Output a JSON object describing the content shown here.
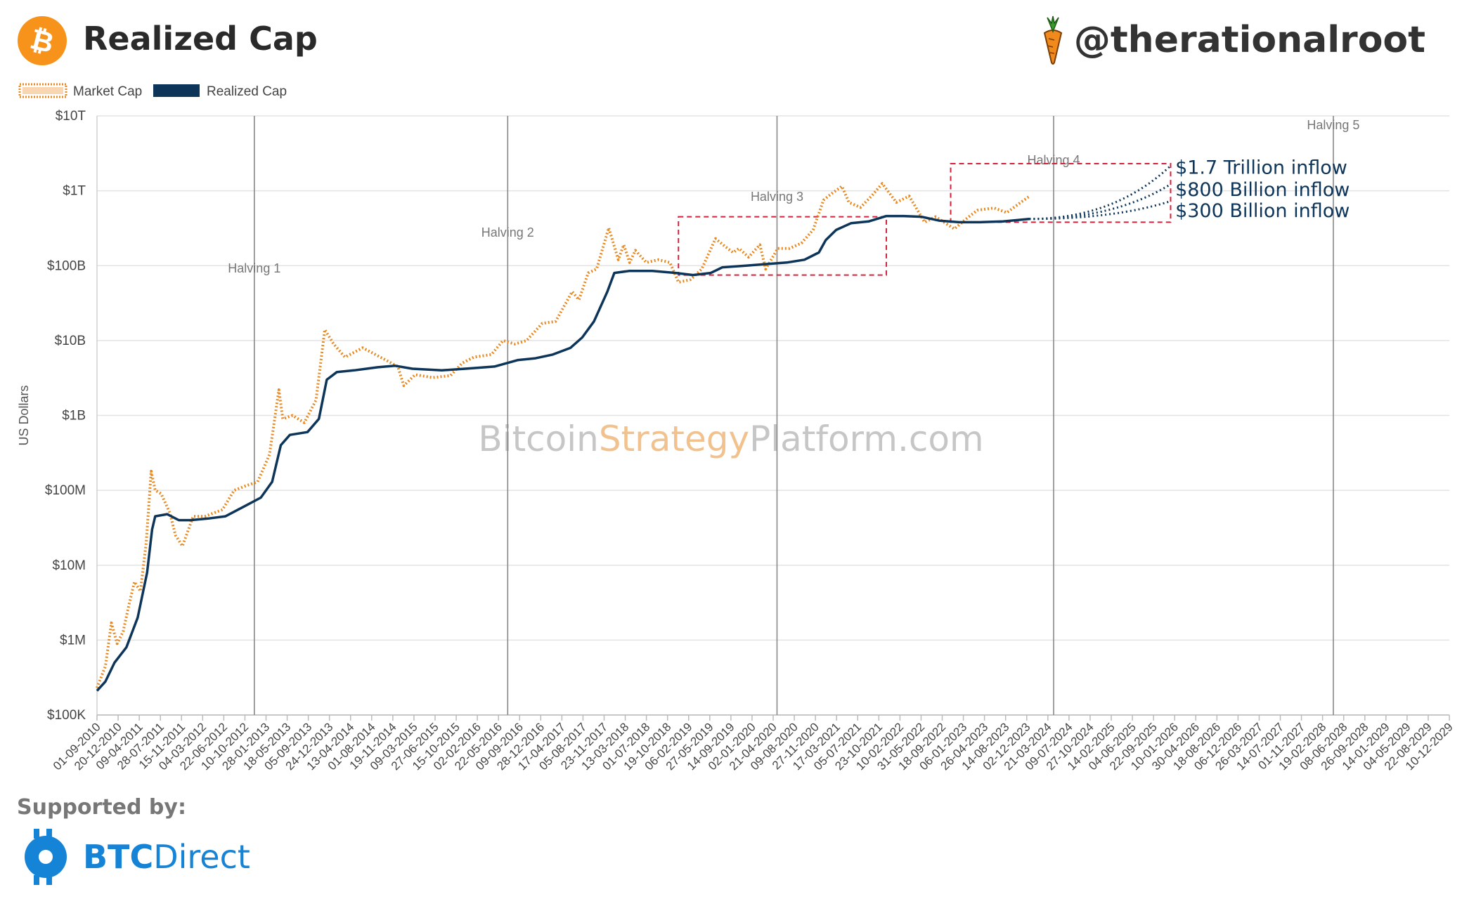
{
  "header": {
    "title": "Realized Cap",
    "author": "@therationalroot"
  },
  "footer": {
    "supported_label": "Supported by:",
    "sponsor_bold": "BTC",
    "sponsor_rest": "Direct"
  },
  "watermark": {
    "part1": "Bitcoin",
    "part2": "Strategy",
    "part3": "Platform.com"
  },
  "colors": {
    "market_cap": "#e8891f",
    "realized_cap": "#0d3559",
    "highlight_box": "#d6203a",
    "btc_orange": "#f7931a",
    "sponsor_blue": "#1583d6"
  },
  "chart_data": {
    "type": "line",
    "yscale": "log",
    "ylabel": "US Dollars",
    "ylim": [
      100000,
      10000000000000
    ],
    "y_ticks": [
      {
        "value": 100000,
        "label": "$100K"
      },
      {
        "value": 1000000,
        "label": "$1M"
      },
      {
        "value": 10000000,
        "label": "$10M"
      },
      {
        "value": 100000000,
        "label": "$100M"
      },
      {
        "value": 1000000000,
        "label": "$1B"
      },
      {
        "value": 10000000000,
        "label": "$10B"
      },
      {
        "value": 100000000000,
        "label": "$100B"
      },
      {
        "value": 1000000000000,
        "label": "$1T"
      },
      {
        "value": 10000000000000,
        "label": "$10T"
      }
    ],
    "xlim": [
      "2010-09-01",
      "2029-12-10"
    ],
    "x_ticks": [
      "01-09-2010",
      "20-12-2010",
      "09-04-2011",
      "28-07-2011",
      "15-11-2011",
      "04-03-2012",
      "22-06-2012",
      "10-10-2012",
      "28-01-2013",
      "18-05-2013",
      "05-09-2013",
      "24-12-2013",
      "13-04-2014",
      "01-08-2014",
      "19-11-2014",
      "09-03-2015",
      "27-06-2015",
      "15-10-2015",
      "02-02-2016",
      "22-05-2016",
      "09-09-2016",
      "28-12-2016",
      "17-04-2017",
      "05-08-2017",
      "23-11-2017",
      "13-03-2018",
      "01-07-2018",
      "19-10-2018",
      "06-02-2019",
      "27-05-2019",
      "14-09-2019",
      "02-01-2020",
      "21-04-2020",
      "09-08-2020",
      "27-11-2020",
      "17-03-2021",
      "05-07-2021",
      "23-10-2021",
      "10-02-2022",
      "31-05-2022",
      "18-09-2022",
      "06-01-2023",
      "26-04-2023",
      "14-08-2023",
      "02-12-2023",
      "21-03-2024",
      "09-07-2024",
      "27-10-2024",
      "14-02-2025",
      "04-06-2025",
      "22-09-2025",
      "10-01-2026",
      "30-04-2026",
      "18-08-2026",
      "06-12-2026",
      "26-03-2027",
      "14-07-2027",
      "01-11-2027",
      "19-02-2028",
      "08-06-2028",
      "26-09-2028",
      "14-01-2029",
      "04-05-2029",
      "22-08-2029",
      "10-12-2029"
    ],
    "legend": [
      {
        "name": "Market Cap",
        "style": "dotted",
        "color": "#e8891f"
      },
      {
        "name": "Realized Cap",
        "style": "solid",
        "color": "#0d3559"
      }
    ],
    "legend_position": "top-left",
    "grid": true,
    "halvings": [
      {
        "label": "Halving 1",
        "date": "2012-11-28"
      },
      {
        "label": "Halving 2",
        "date": "2016-07-09"
      },
      {
        "label": "Halving 3",
        "date": "2020-05-11"
      },
      {
        "label": "Halving 4",
        "date": "2024-04-20"
      },
      {
        "label": "Halving 5",
        "date": "2028-04-15"
      }
    ],
    "series": [
      {
        "name": "Market Cap",
        "points": [
          [
            "2010-09-01",
            230000
          ],
          [
            "2010-10-15",
            450000
          ],
          [
            "2010-11-15",
            1700000
          ],
          [
            "2010-12-15",
            900000
          ],
          [
            "2011-01-15",
            1300000
          ],
          [
            "2011-02-15",
            3000000
          ],
          [
            "2011-03-15",
            6000000
          ],
          [
            "2011-04-15",
            4500000
          ],
          [
            "2011-05-15",
            20000000
          ],
          [
            "2011-06-10",
            180000000
          ],
          [
            "2011-07-01",
            100000000
          ],
          [
            "2011-08-01",
            90000000
          ],
          [
            "2011-09-15",
            50000000
          ],
          [
            "2011-10-15",
            25000000
          ],
          [
            "2011-11-20",
            18000000
          ],
          [
            "2012-01-15",
            45000000
          ],
          [
            "2012-03-15",
            45000000
          ],
          [
            "2012-06-15",
            55000000
          ],
          [
            "2012-08-15",
            100000000
          ],
          [
            "2012-10-15",
            115000000
          ],
          [
            "2012-12-15",
            130000000
          ],
          [
            "2013-02-15",
            300000000
          ],
          [
            "2013-04-05",
            2200000000
          ],
          [
            "2013-04-25",
            900000000
          ],
          [
            "2013-06-15",
            1000000000
          ],
          [
            "2013-08-15",
            800000000
          ],
          [
            "2013-10-15",
            1600000000
          ],
          [
            "2013-11-30",
            14000000000
          ],
          [
            "2014-01-15",
            9000000000
          ],
          [
            "2014-03-15",
            6000000000
          ],
          [
            "2014-06-15",
            8000000000
          ],
          [
            "2014-09-15",
            6000000000
          ],
          [
            "2014-12-15",
            4500000000
          ],
          [
            "2015-01-15",
            2500000000
          ],
          [
            "2015-03-15",
            3500000000
          ],
          [
            "2015-06-15",
            3200000000
          ],
          [
            "2015-09-15",
            3400000000
          ],
          [
            "2015-11-15",
            5000000000
          ],
          [
            "2016-01-15",
            6000000000
          ],
          [
            "2016-04-15",
            6500000000
          ],
          [
            "2016-06-15",
            10000000000
          ],
          [
            "2016-08-15",
            9000000000
          ],
          [
            "2016-10-15",
            10000000000
          ],
          [
            "2017-01-05",
            17000000000
          ],
          [
            "2017-03-15",
            18000000000
          ],
          [
            "2017-06-10",
            45000000000
          ],
          [
            "2017-07-15",
            35000000000
          ],
          [
            "2017-09-01",
            80000000000
          ],
          [
            "2017-10-15",
            90000000000
          ],
          [
            "2017-12-17",
            320000000000
          ],
          [
            "2018-02-05",
            120000000000
          ],
          [
            "2018-03-05",
            190000000000
          ],
          [
            "2018-04-05",
            110000000000
          ],
          [
            "2018-05-05",
            160000000000
          ],
          [
            "2018-07-01",
            110000000000
          ],
          [
            "2018-09-01",
            120000000000
          ],
          [
            "2018-11-01",
            110000000000
          ],
          [
            "2018-12-15",
            60000000000
          ],
          [
            "2019-02-15",
            65000000000
          ],
          [
            "2019-04-15",
            90000000000
          ],
          [
            "2019-06-26",
            230000000000
          ],
          [
            "2019-08-15",
            180000000000
          ],
          [
            "2019-09-25",
            150000000000
          ],
          [
            "2019-10-26",
            170000000000
          ],
          [
            "2019-12-15",
            130000000000
          ],
          [
            "2020-02-12",
            190000000000
          ],
          [
            "2020-03-13",
            90000000000
          ],
          [
            "2020-05-15",
            170000000000
          ],
          [
            "2020-07-15",
            170000000000
          ],
          [
            "2020-09-15",
            200000000000
          ],
          [
            "2020-11-15",
            300000000000
          ],
          [
            "2021-01-08",
            750000000000
          ],
          [
            "2021-02-15",
            900000000000
          ],
          [
            "2021-04-14",
            1150000000000
          ],
          [
            "2021-05-20",
            700000000000
          ],
          [
            "2021-07-20",
            600000000000
          ],
          [
            "2021-09-15",
            850000000000
          ],
          [
            "2021-11-10",
            1250000000000
          ],
          [
            "2022-01-22",
            700000000000
          ],
          [
            "2022-03-30",
            850000000000
          ],
          [
            "2022-06-18",
            380000000000
          ],
          [
            "2022-08-15",
            450000000000
          ],
          [
            "2022-11-20",
            310000000000
          ],
          [
            "2023-01-20",
            420000000000
          ],
          [
            "2023-03-20",
            550000000000
          ],
          [
            "2023-06-15",
            590000000000
          ],
          [
            "2023-08-20",
            510000000000
          ],
          [
            "2023-10-25",
            680000000000
          ],
          [
            "2023-12-15",
            840000000000
          ]
        ]
      },
      {
        "name": "Realized Cap",
        "points": [
          [
            "2010-09-01",
            210000
          ],
          [
            "2010-10-15",
            280000
          ],
          [
            "2010-12-01",
            500000
          ],
          [
            "2011-02-01",
            800000
          ],
          [
            "2011-04-01",
            2000000
          ],
          [
            "2011-05-20",
            8000000
          ],
          [
            "2011-06-15",
            30000000
          ],
          [
            "2011-07-01",
            45000000
          ],
          [
            "2011-09-01",
            48000000
          ],
          [
            "2011-11-01",
            40000000
          ],
          [
            "2012-01-01",
            40000000
          ],
          [
            "2012-04-01",
            42000000
          ],
          [
            "2012-07-01",
            45000000
          ],
          [
            "2012-10-01",
            60000000
          ],
          [
            "2013-01-01",
            80000000
          ],
          [
            "2013-03-01",
            130000000
          ],
          [
            "2013-04-15",
            400000000
          ],
          [
            "2013-06-01",
            550000000
          ],
          [
            "2013-09-01",
            600000000
          ],
          [
            "2013-10-30",
            900000000
          ],
          [
            "2013-12-10",
            3000000000
          ],
          [
            "2014-02-01",
            3800000000
          ],
          [
            "2014-05-01",
            4000000000
          ],
          [
            "2014-09-01",
            4400000000
          ],
          [
            "2014-12-01",
            4600000000
          ],
          [
            "2015-03-01",
            4200000000
          ],
          [
            "2015-08-01",
            4000000000
          ],
          [
            "2015-12-01",
            4200000000
          ],
          [
            "2016-05-01",
            4500000000
          ],
          [
            "2016-09-01",
            5500000000
          ],
          [
            "2016-12-01",
            5800000000
          ],
          [
            "2017-03-01",
            6500000000
          ],
          [
            "2017-06-01",
            8000000000
          ],
          [
            "2017-08-01",
            11000000000
          ],
          [
            "2017-10-01",
            18000000000
          ],
          [
            "2017-12-10",
            45000000000
          ],
          [
            "2018-01-15",
            80000000000
          ],
          [
            "2018-04-01",
            85000000000
          ],
          [
            "2018-08-01",
            85000000000
          ],
          [
            "2018-12-01",
            80000000000
          ],
          [
            "2019-03-01",
            75000000000
          ],
          [
            "2019-06-01",
            80000000000
          ],
          [
            "2019-08-01",
            95000000000
          ],
          [
            "2019-12-01",
            100000000000
          ],
          [
            "2020-03-15",
            105000000000
          ],
          [
            "2020-07-01",
            110000000000
          ],
          [
            "2020-10-01",
            120000000000
          ],
          [
            "2020-12-15",
            150000000000
          ],
          [
            "2021-01-20",
            220000000000
          ],
          [
            "2021-03-15",
            300000000000
          ],
          [
            "2021-06-01",
            370000000000
          ],
          [
            "2021-09-01",
            390000000000
          ],
          [
            "2021-12-01",
            460000000000
          ],
          [
            "2022-03-01",
            460000000000
          ],
          [
            "2022-06-01",
            450000000000
          ],
          [
            "2022-09-01",
            400000000000
          ],
          [
            "2022-12-15",
            380000000000
          ],
          [
            "2023-04-01",
            380000000000
          ],
          [
            "2023-08-01",
            390000000000
          ],
          [
            "2023-12-15",
            420000000000
          ]
        ]
      }
    ],
    "projections": [
      {
        "label": "$1.7 Trillion inflow",
        "start": [
          "2023-12-15",
          420000000000
        ],
        "end": [
          "2025-12-15",
          2100000000000
        ]
      },
      {
        "label": "$800 Billion inflow",
        "start": [
          "2023-12-15",
          420000000000
        ],
        "end": [
          "2025-12-15",
          1200000000000
        ]
      },
      {
        "label": "$300 Billion inflow",
        "start": [
          "2023-12-15",
          420000000000
        ],
        "end": [
          "2025-12-15",
          720000000000
        ]
      }
    ],
    "highlight_boxes": [
      {
        "from": "2018-12-15",
        "to": "2021-12-01",
        "ymin": 75000000000,
        "ymax": 450000000000
      },
      {
        "from": "2022-11-01",
        "to": "2025-12-20",
        "ymin": 380000000000,
        "ymax": 2300000000000
      }
    ]
  }
}
